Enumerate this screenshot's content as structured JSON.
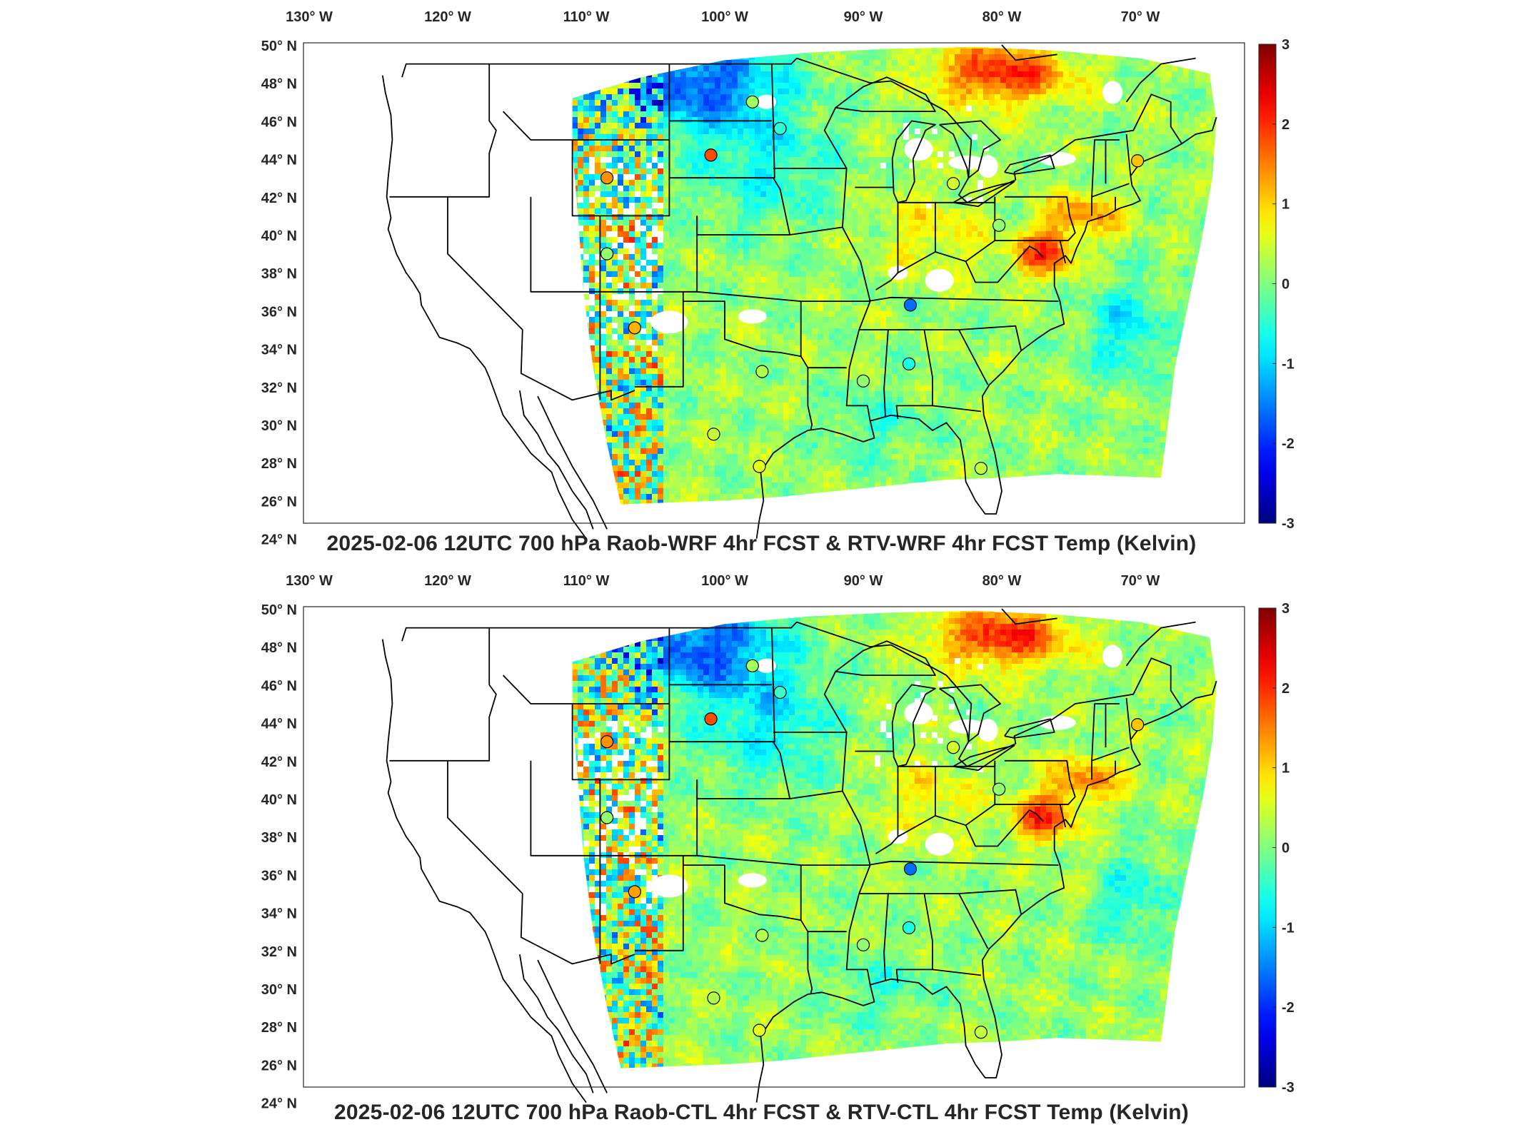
{
  "panels": [
    {
      "title": "2025-02-06 12UTC 700 hPa Raob-WRF 4hr FCST & RTV-WRF 4hr FCST Temp (Kelvin)",
      "variant": "wrf",
      "stations": [
        {
          "lon": -98.0,
          "lat": 47.0,
          "value": 0.2
        },
        {
          "lon": -96.0,
          "lat": 45.6,
          "value": -0.5
        },
        {
          "lon": -101.0,
          "lat": 44.2,
          "value": 1.8
        },
        {
          "lon": -108.5,
          "lat": 43.0,
          "value": 1.4
        },
        {
          "lon": -108.5,
          "lat": 39.0,
          "value": 0.1
        },
        {
          "lon": -106.5,
          "lat": 35.1,
          "value": 1.2
        },
        {
          "lon": -97.3,
          "lat": 32.8,
          "value": 0.3
        },
        {
          "lon": -100.8,
          "lat": 29.5,
          "value": 0.4
        },
        {
          "lon": -97.5,
          "lat": 27.8,
          "value": 0.6
        },
        {
          "lon": -90.0,
          "lat": 32.3,
          "value": 0.1
        },
        {
          "lon": -86.7,
          "lat": 33.2,
          "value": -0.6
        },
        {
          "lon": -86.6,
          "lat": 36.3,
          "value": -1.6
        },
        {
          "lon": -83.5,
          "lat": 42.7,
          "value": 0.5
        },
        {
          "lon": -80.2,
          "lat": 40.5,
          "value": 0.1
        },
        {
          "lon": -81.5,
          "lat": 27.7,
          "value": 0.4
        },
        {
          "lon": -70.2,
          "lat": 43.9,
          "value": 1.1
        }
      ]
    },
    {
      "title": "2025-02-06 12UTC 700 hPa Raob-CTL 4hr FCST & RTV-CTL 4hr FCST Temp (Kelvin)",
      "variant": "ctl",
      "stations": [
        {
          "lon": -98.0,
          "lat": 47.0,
          "value": 0.2
        },
        {
          "lon": -96.0,
          "lat": 45.6,
          "value": -0.4
        },
        {
          "lon": -101.0,
          "lat": 44.2,
          "value": 1.8
        },
        {
          "lon": -108.5,
          "lat": 43.0,
          "value": 1.4
        },
        {
          "lon": -108.5,
          "lat": 39.0,
          "value": 0.1
        },
        {
          "lon": -106.5,
          "lat": 35.1,
          "value": 1.3
        },
        {
          "lon": -97.3,
          "lat": 32.8,
          "value": 0.3
        },
        {
          "lon": -100.8,
          "lat": 29.5,
          "value": 0.3
        },
        {
          "lon": -97.5,
          "lat": 27.8,
          "value": 0.6
        },
        {
          "lon": -90.0,
          "lat": 32.3,
          "value": 0.1
        },
        {
          "lon": -86.7,
          "lat": 33.2,
          "value": -0.6
        },
        {
          "lon": -86.6,
          "lat": 36.3,
          "value": -1.6
        },
        {
          "lon": -83.5,
          "lat": 42.7,
          "value": 0.5
        },
        {
          "lon": -80.2,
          "lat": 40.5,
          "value": 0.1
        },
        {
          "lon": -81.5,
          "lat": 27.7,
          "value": 0.4
        },
        {
          "lon": -70.2,
          "lat": 43.9,
          "value": 1.1
        }
      ]
    }
  ],
  "map": {
    "lon_ticks": [
      "130° W",
      "120° W",
      "110° W",
      "100° W",
      "90° W",
      "80° W",
      "70° W"
    ],
    "lat_ticks": [
      "50° N",
      "48° N",
      "46° N",
      "44° N",
      "42° N",
      "40° N",
      "38° N",
      "36° N",
      "34° N",
      "32° N",
      "30° N",
      "28° N",
      "26° N",
      "24° N"
    ],
    "colorbar": {
      "min": -3,
      "max": 3,
      "ticks": [
        "3",
        "2",
        "1",
        "0",
        "-1",
        "-2",
        "-3"
      ],
      "colormap": "jet"
    }
  }
}
